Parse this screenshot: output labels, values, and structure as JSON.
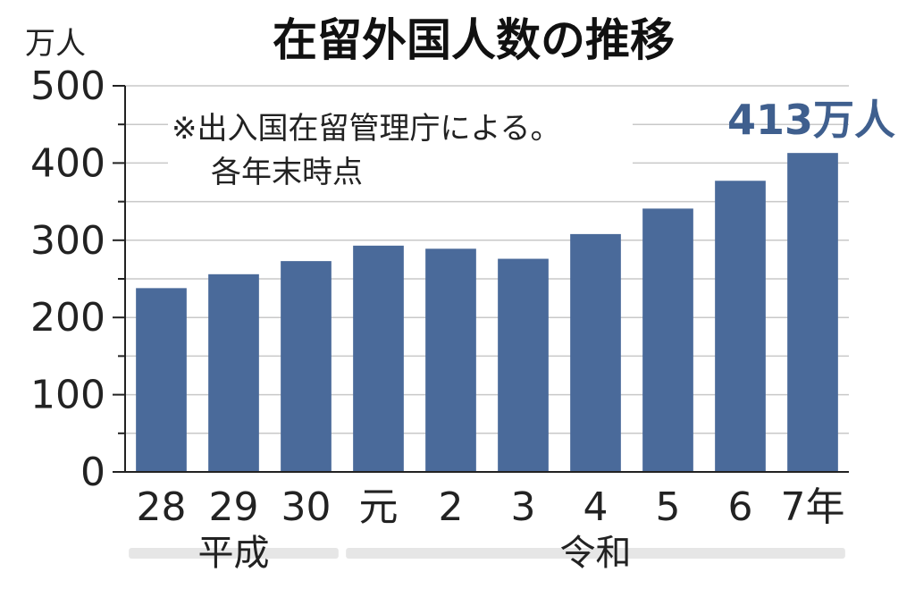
{
  "chart_data": {
    "type": "bar",
    "title": "在留外国人数の推移",
    "ylabel": "万人",
    "ylim": [
      0,
      500
    ],
    "yticks": [
      0,
      100,
      200,
      300,
      400,
      500
    ],
    "categories": [
      "28",
      "29",
      "30",
      "元",
      "2",
      "3",
      "4",
      "5",
      "6",
      "7年"
    ],
    "values": [
      238,
      256,
      273,
      293,
      289,
      276,
      308,
      341,
      377,
      413
    ],
    "eras": [
      {
        "label": "平成",
        "from": 0,
        "to": 2
      },
      {
        "label": "令和",
        "from": 3,
        "to": 9
      }
    ],
    "note_lines": [
      "※出入国在留管理庁による。",
      "各年末時点"
    ],
    "callout": "413万人",
    "grid": true,
    "colors": {
      "bar": "#4a6a9a",
      "callout": "#3f5f8e",
      "grid": "#c8c8c8",
      "era_band": "#e6e6e6"
    }
  }
}
